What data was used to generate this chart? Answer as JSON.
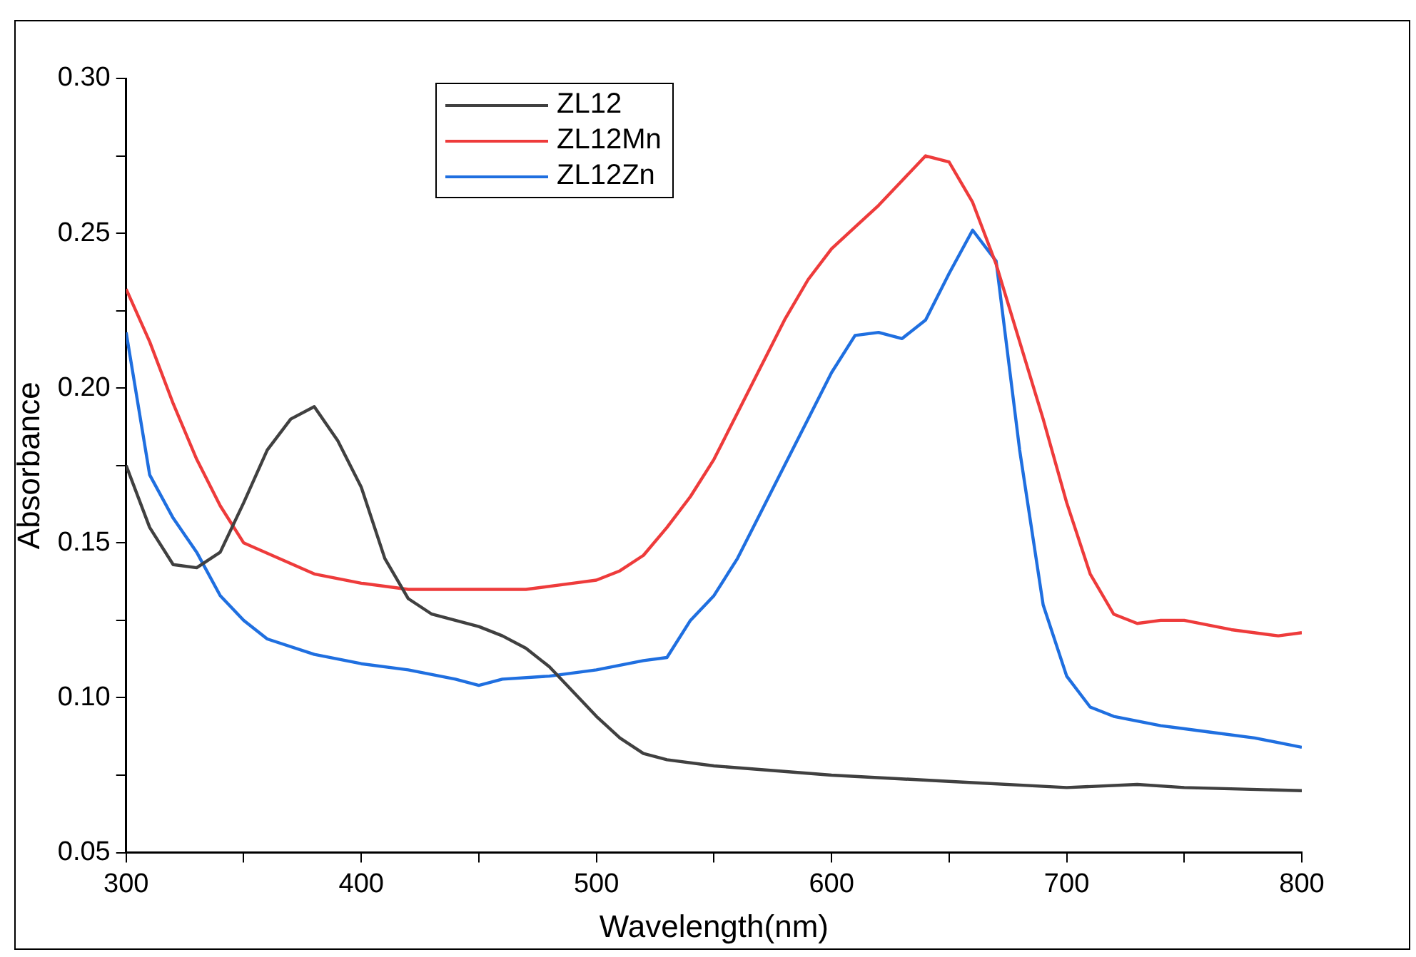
{
  "chart_data": {
    "type": "line",
    "xlabel": "Wavelength(nm)",
    "ylabel": "Absorbance",
    "xlim": [
      300,
      800
    ],
    "ylim": [
      0.05,
      0.3
    ],
    "xticks": [
      300,
      {
        "value": 350,
        "label": null
      },
      400,
      {
        "value": 450,
        "label": null
      },
      500,
      {
        "value": 550,
        "label": null
      },
      600,
      {
        "value": 650,
        "label": null
      },
      700,
      {
        "value": 750,
        "label": null
      },
      800
    ],
    "yticks": [
      {
        "value": 0.05,
        "label": "0.05"
      },
      {
        "value": 0.075,
        "label": null
      },
      {
        "value": 0.1,
        "label": "0.10"
      },
      {
        "value": 0.125,
        "label": null
      },
      {
        "value": 0.15,
        "label": "0.15"
      },
      {
        "value": 0.175,
        "label": null
      },
      {
        "value": 0.2,
        "label": "0.20"
      },
      {
        "value": 0.225,
        "label": null
      },
      {
        "value": 0.25,
        "label": "0.25"
      },
      {
        "value": 0.275,
        "label": null
      },
      {
        "value": 0.3,
        "label": "0.30"
      }
    ],
    "grid": false,
    "legend": "top left",
    "marker": "none",
    "line_style": "solid",
    "series": [
      {
        "name": "ZL12",
        "color": "#404040",
        "x": [
          300,
          310,
          320,
          330,
          340,
          350,
          360,
          370,
          380,
          390,
          400,
          410,
          420,
          430,
          440,
          450,
          460,
          470,
          480,
          490,
          500,
          510,
          520,
          530,
          550,
          600,
          650,
          700,
          730,
          750,
          800
        ],
        "values": [
          0.175,
          0.155,
          0.143,
          0.142,
          0.147,
          0.163,
          0.18,
          0.19,
          0.194,
          0.183,
          0.168,
          0.145,
          0.132,
          0.127,
          0.125,
          0.123,
          0.12,
          0.116,
          0.11,
          0.102,
          0.094,
          0.087,
          0.082,
          0.08,
          0.078,
          0.075,
          0.073,
          0.071,
          0.072,
          0.071,
          0.07
        ]
      },
      {
        "name": "ZL12Mn",
        "color": "#ee3b3b",
        "x": [
          300,
          310,
          320,
          330,
          340,
          350,
          380,
          400,
          420,
          450,
          470,
          490,
          500,
          510,
          520,
          530,
          540,
          550,
          560,
          570,
          580,
          590,
          600,
          610,
          620,
          630,
          640,
          650,
          660,
          670,
          680,
          690,
          700,
          710,
          720,
          730,
          740,
          750,
          770,
          790,
          800
        ],
        "values": [
          0.232,
          0.215,
          0.195,
          0.177,
          0.162,
          0.15,
          0.14,
          0.137,
          0.135,
          0.135,
          0.135,
          0.137,
          0.138,
          0.141,
          0.146,
          0.155,
          0.165,
          0.177,
          0.192,
          0.207,
          0.222,
          0.235,
          0.245,
          0.252,
          0.259,
          0.267,
          0.275,
          0.273,
          0.26,
          0.24,
          0.215,
          0.19,
          0.163,
          0.14,
          0.127,
          0.124,
          0.125,
          0.125,
          0.122,
          0.12,
          0.121
        ]
      },
      {
        "name": "ZL12Zn",
        "color": "#1f6fe0",
        "x": [
          300,
          310,
          320,
          330,
          340,
          350,
          360,
          380,
          400,
          420,
          440,
          450,
          460,
          480,
          500,
          520,
          530,
          540,
          550,
          560,
          570,
          580,
          590,
          600,
          610,
          620,
          630,
          640,
          650,
          660,
          670,
          680,
          690,
          700,
          710,
          720,
          740,
          760,
          780,
          800
        ],
        "values": [
          0.218,
          0.172,
          0.158,
          0.147,
          0.133,
          0.125,
          0.119,
          0.114,
          0.111,
          0.109,
          0.106,
          0.104,
          0.106,
          0.107,
          0.109,
          0.112,
          0.113,
          0.125,
          0.133,
          0.145,
          0.16,
          0.175,
          0.19,
          0.205,
          0.217,
          0.218,
          0.216,
          0.222,
          0.237,
          0.251,
          0.241,
          0.18,
          0.13,
          0.107,
          0.097,
          0.094,
          0.091,
          0.089,
          0.087,
          0.084
        ]
      }
    ]
  }
}
